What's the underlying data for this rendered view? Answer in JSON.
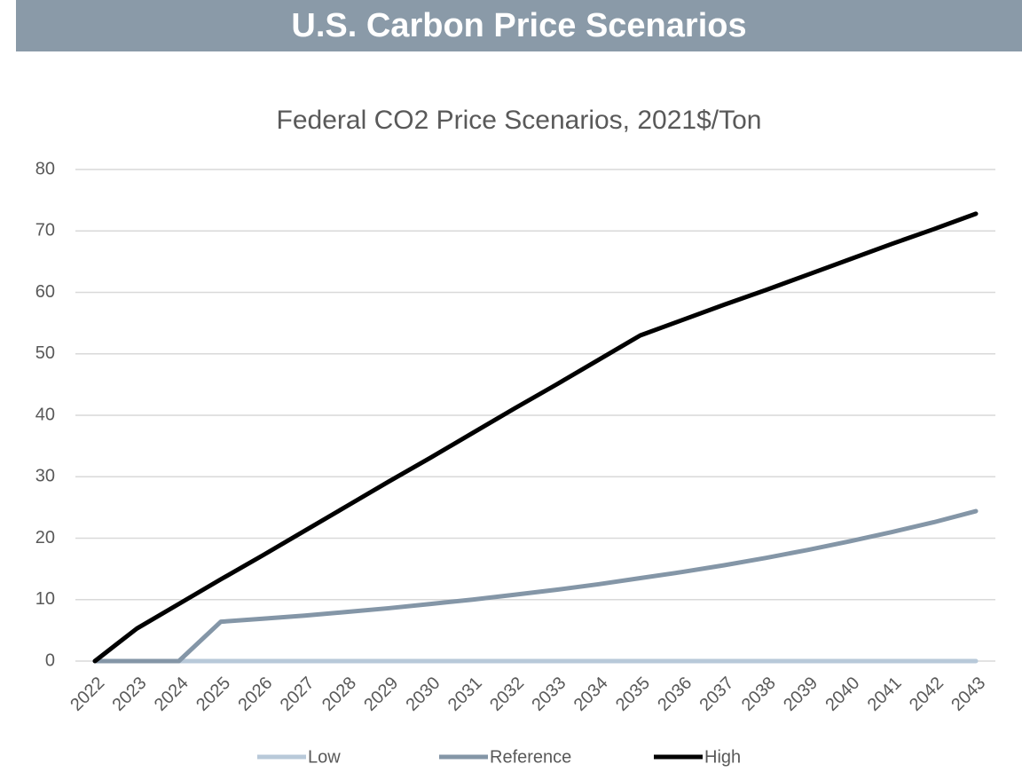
{
  "banner": "U.S. Carbon Price Scenarios",
  "chart_data": {
    "type": "line",
    "title": "Federal CO2 Price Scenarios, 2021$/Ton",
    "categories": [
      "2022",
      "2023",
      "2024",
      "2025",
      "2026",
      "2027",
      "2028",
      "2029",
      "2030",
      "2031",
      "2032",
      "2033",
      "2034",
      "2035",
      "2036",
      "2037",
      "2038",
      "2039",
      "2040",
      "2041",
      "2042",
      "2043"
    ],
    "series": [
      {
        "name": "Low",
        "color": "#b8c9d9",
        "values": [
          0,
          0,
          0,
          0,
          0,
          0,
          0,
          0,
          0,
          0,
          0,
          0,
          0,
          0,
          0,
          0,
          0,
          0,
          0,
          0,
          0,
          0
        ]
      },
      {
        "name": "Reference",
        "color": "#8496a7",
        "values": [
          0,
          0,
          0,
          6.4,
          6.9,
          7.4,
          8.0,
          8.6,
          9.3,
          10.0,
          10.8,
          11.6,
          12.5,
          13.5,
          14.5,
          15.6,
          16.8,
          18.1,
          19.5,
          21.0,
          22.6,
          24.4
        ]
      },
      {
        "name": "High",
        "color": "#000000",
        "values": [
          0,
          5.3,
          9.3,
          13.3,
          17.2,
          21.2,
          25.2,
          29.2,
          33.1,
          37.1,
          41.1,
          45.0,
          49.0,
          53.0,
          55.5,
          58.0,
          60.4,
          62.9,
          65.4,
          67.9,
          70.3,
          72.8
        ]
      }
    ],
    "ylim": [
      0,
      80
    ],
    "yticks": [
      0,
      10,
      20,
      30,
      40,
      50,
      60,
      70,
      80
    ],
    "grid": true,
    "legend": "bottom"
  }
}
